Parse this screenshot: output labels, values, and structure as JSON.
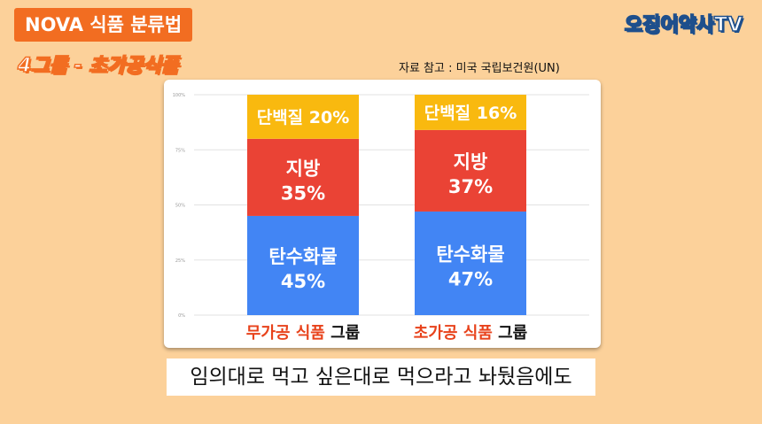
{
  "header": {
    "title": "NOVA 식품 분류법",
    "subtitle": "4그룹 - 초가공식품",
    "logo": "오징어약사TV",
    "source": "자료 참고 : 미국 국립보건원(UN)"
  },
  "caption": "임의대로 먹고 싶은대로 먹으라고 놔뒀음에도",
  "colors": {
    "background": "#fcd19a",
    "title_badge": "#f26d21",
    "protein": "#f9b90f",
    "fat": "#ea4335",
    "carbohydrate": "#4285f4",
    "highlight_text": "#e8421b"
  },
  "chart_data": {
    "type": "bar",
    "stacked": true,
    "categories": [
      {
        "highlight": "무가공 식품",
        "rest": " 그룹"
      },
      {
        "highlight": "초가공 식품",
        "rest": " 그룹"
      }
    ],
    "series": [
      {
        "name": "탄수화물",
        "values": [
          45,
          47
        ],
        "color": "#4285f4"
      },
      {
        "name": "지방",
        "values": [
          35,
          37
        ],
        "color": "#ea4335"
      },
      {
        "name": "단백질",
        "values": [
          20,
          16
        ],
        "color": "#f9b90f"
      }
    ],
    "ylim": [
      0,
      100
    ],
    "yticks": [
      "0%",
      "25%",
      "50%",
      "75%",
      "100%"
    ],
    "grid": true
  }
}
